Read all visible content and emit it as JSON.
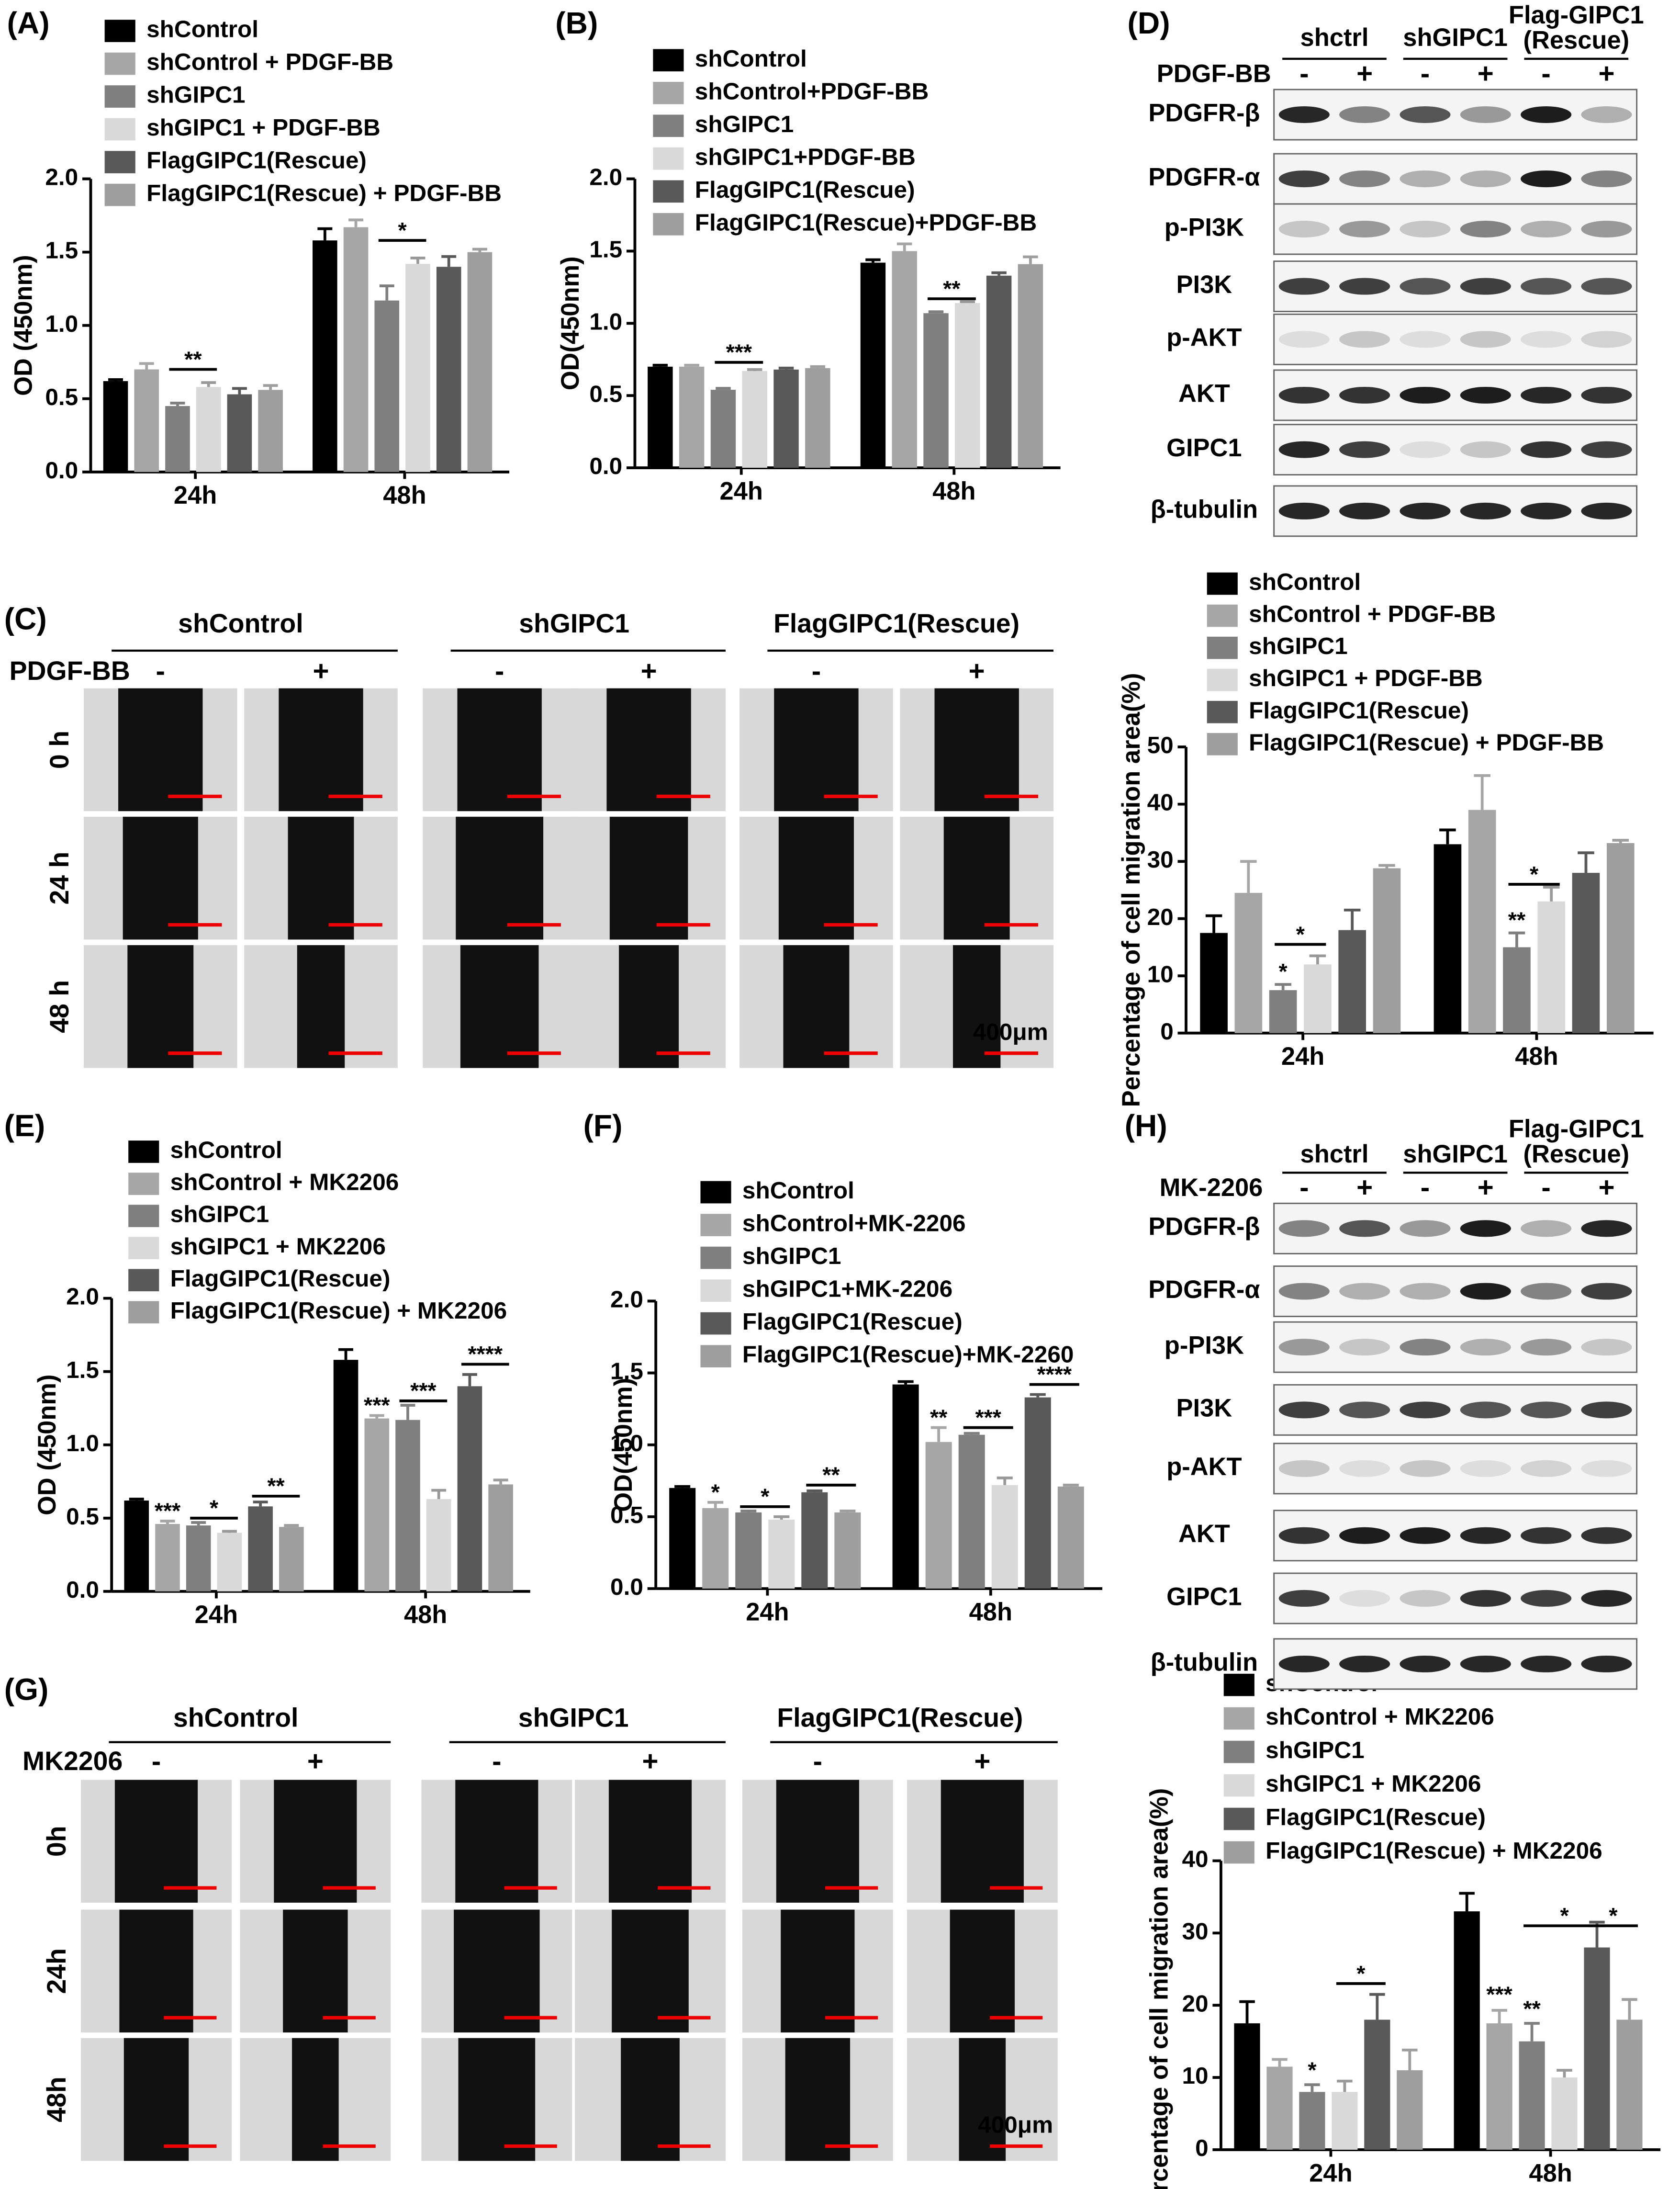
{
  "panel_labels": [
    "(A)",
    "(B)",
    "(C)",
    "(D)",
    "(E)",
    "(F)",
    "(G)",
    "(H)"
  ],
  "chart_data": [
    {
      "type": "bar",
      "ylabel": "OD (450nm)",
      "categories": [
        "24h",
        "48h"
      ],
      "ylim": [
        0,
        2
      ],
      "yticks": [
        {
          "value": 0,
          "label": "0.0"
        },
        0.5,
        {
          "value": 1,
          "label": "1.0"
        },
        1.5,
        {
          "value": 2,
          "label": "2.0"
        }
      ],
      "series": [
        {
          "name": "shControl",
          "color": "#000000",
          "values": [
            0.62,
            1.58
          ],
          "errors": [
            0.01,
            0.08
          ]
        },
        {
          "name": "shControl + PDGF-BB",
          "color": "#a6a6a6",
          "values": [
            0.7,
            1.67
          ],
          "errors": [
            0.04,
            0.05
          ]
        },
        {
          "name": "shGIPC1",
          "color": "#7f7f7f",
          "values": [
            0.45,
            1.17
          ],
          "errors": [
            0.02,
            0.1
          ]
        },
        {
          "name": "shGIPC1 + PDGF-BB",
          "color": "#d9d9d9",
          "values": [
            0.58,
            1.42
          ],
          "errors": [
            0.03,
            0.04
          ]
        },
        {
          "name": "FlagGIPC1(Rescue)",
          "color": "#595959",
          "values": [
            0.53,
            1.4
          ],
          "errors": [
            0.04,
            0.07
          ]
        },
        {
          "name": "FlagGIPC1(Rescue) + PDGF-BB",
          "color": "#9e9e9e",
          "values": [
            0.56,
            1.5
          ],
          "errors": [
            0.03,
            0.02
          ]
        }
      ],
      "annotations": [
        {
          "text": "**",
          "category": "24h",
          "series": [
            "shGIPC1",
            "shGIPC1 + PDGF-BB"
          ],
          "y": 0.7
        },
        {
          "text": "*",
          "category": "48h",
          "series": [
            "shGIPC1",
            "shGIPC1 + PDGF-BB"
          ],
          "y": 1.58
        }
      ]
    },
    {
      "type": "bar",
      "ylabel": "OD(450nm)",
      "categories": [
        "24h",
        "48h"
      ],
      "ylim": [
        0,
        2
      ],
      "yticks": [
        {
          "value": 0,
          "label": "0.0"
        },
        0.5,
        {
          "value": 1,
          "label": "1.0"
        },
        1.5,
        {
          "value": 2,
          "label": "2.0"
        }
      ],
      "series": [
        {
          "name": "shControl",
          "color": "#000000",
          "values": [
            0.7,
            1.42
          ],
          "errors": [
            0.01,
            0.02
          ]
        },
        {
          "name": "shControl+PDGF-BB",
          "color": "#a6a6a6",
          "values": [
            0.7,
            1.5
          ],
          "errors": [
            0.01,
            0.05
          ]
        },
        {
          "name": "shGIPC1",
          "color": "#7f7f7f",
          "values": [
            0.54,
            1.07
          ],
          "errors": [
            0.01,
            0.01
          ]
        },
        {
          "name": "shGIPC1+PDGF-BB",
          "color": "#d9d9d9",
          "values": [
            0.67,
            1.14
          ],
          "errors": [
            0.01,
            0.01
          ]
        },
        {
          "name": "FlagGIPC1(Rescue)",
          "color": "#595959",
          "values": [
            0.68,
            1.33
          ],
          "errors": [
            0.01,
            0.02
          ]
        },
        {
          "name": "FlagGIPC1(Rescue)+PDGF-BB",
          "color": "#9e9e9e",
          "values": [
            0.69,
            1.41
          ],
          "errors": [
            0.01,
            0.05
          ]
        }
      ],
      "annotations": [
        {
          "text": "***",
          "category": "24h",
          "series": [
            "shGIPC1",
            "shGIPC1+PDGF-BB"
          ],
          "y": 0.73
        },
        {
          "text": "**",
          "category": "48h",
          "series": [
            "shGIPC1",
            "shGIPC1+PDGF-BB"
          ],
          "y": 1.17
        }
      ]
    },
    {
      "type": "bar",
      "ylabel": "Percentage of cell migration area(%)",
      "categories": [
        "24h",
        "48h"
      ],
      "ylim": [
        0,
        50
      ],
      "yticks": [
        0,
        10,
        20,
        30,
        40,
        50
      ],
      "series": [
        {
          "name": "shControl",
          "color": "#000000",
          "values": [
            17.5,
            33
          ],
          "errors": [
            3,
            2.5
          ]
        },
        {
          "name": "shControl + PDGF-BB",
          "color": "#a6a6a6",
          "values": [
            24.5,
            39
          ],
          "errors": [
            5.5,
            6
          ]
        },
        {
          "name": "shGIPC1",
          "color": "#7f7f7f",
          "values": [
            7.5,
            15
          ],
          "errors": [
            1,
            2.5
          ]
        },
        {
          "name": "shGIPC1 + PDGF-BB",
          "color": "#d9d9d9",
          "values": [
            12,
            23
          ],
          "errors": [
            1.5,
            2.5
          ]
        },
        {
          "name": "FlagGIPC1(Rescue)",
          "color": "#595959",
          "values": [
            18,
            28
          ],
          "errors": [
            3.5,
            3.5
          ]
        },
        {
          "name": "FlagGIPC1(Rescue) + PDGF-BB",
          "color": "#9e9e9e",
          "values": [
            28.8,
            33.2
          ],
          "errors": [
            0.5,
            0.5
          ]
        }
      ],
      "annotations": [
        {
          "text": "*",
          "category": "24h",
          "series": [
            "shGIPC1"
          ],
          "y": 9.5
        },
        {
          "text": "*",
          "category": "24h",
          "series": [
            "shGIPC1",
            "shGIPC1 + PDGF-BB"
          ],
          "y": 15.5
        },
        {
          "text": "**",
          "category": "48h",
          "series": [
            "shGIPC1"
          ],
          "y": 18.5
        },
        {
          "text": "*",
          "category": "48h",
          "series": [
            "shGIPC1",
            "shGIPC1 + PDGF-BB"
          ],
          "y": 26
        }
      ]
    },
    {
      "type": "bar",
      "ylabel": "OD (450nm)",
      "categories": [
        "24h",
        "48h"
      ],
      "ylim": [
        0,
        2
      ],
      "yticks": [
        {
          "value": 0,
          "label": "0.0"
        },
        0.5,
        {
          "value": 1,
          "label": "1.0"
        },
        1.5,
        {
          "value": 2,
          "label": "2.0"
        }
      ],
      "series": [
        {
          "name": "shControl",
          "color": "#000000",
          "values": [
            0.62,
            1.58
          ],
          "errors": [
            0.01,
            0.07
          ]
        },
        {
          "name": "shControl + MK2206",
          "color": "#a6a6a6",
          "values": [
            0.46,
            1.18
          ],
          "errors": [
            0.02,
            0.02
          ]
        },
        {
          "name": "shGIPC1",
          "color": "#7f7f7f",
          "values": [
            0.45,
            1.17
          ],
          "errors": [
            0.02,
            0.1
          ]
        },
        {
          "name": "shGIPC1 + MK2206",
          "color": "#d9d9d9",
          "values": [
            0.4,
            0.63
          ],
          "errors": [
            0.01,
            0.06
          ]
        },
        {
          "name": "FlagGIPC1(Rescue)",
          "color": "#595959",
          "values": [
            0.58,
            1.4
          ],
          "errors": [
            0.03,
            0.08
          ]
        },
        {
          "name": "FlagGIPC1(Rescue) + MK2206",
          "color": "#9e9e9e",
          "values": [
            0.44,
            0.73
          ],
          "errors": [
            0.01,
            0.03
          ]
        }
      ],
      "annotations": [
        {
          "text": "***",
          "category": "24h",
          "series": [
            "shControl + MK2206"
          ],
          "y": 0.5
        },
        {
          "text": "*",
          "category": "24h",
          "series": [
            "shGIPC1",
            "shGIPC1 + MK2206"
          ],
          "y": 0.5
        },
        {
          "text": "**",
          "category": "24h",
          "series": [
            "FlagGIPC1(Rescue)",
            "FlagGIPC1(Rescue) + MK2206"
          ],
          "y": 0.65
        },
        {
          "text": "***",
          "category": "48h",
          "series": [
            "shControl + MK2206"
          ],
          "y": 1.22
        },
        {
          "text": "***",
          "category": "48h",
          "series": [
            "shGIPC1",
            "shGIPC1 + MK2206"
          ],
          "y": 1.3
        },
        {
          "text": "****",
          "category": "48h",
          "series": [
            "FlagGIPC1(Rescue)",
            "FlagGIPC1(Rescue) + MK2206"
          ],
          "y": 1.55
        }
      ]
    },
    {
      "type": "bar",
      "ylabel": "OD(450nm)",
      "categories": [
        "24h",
        "48h"
      ],
      "ylim": [
        0,
        2
      ],
      "yticks": [
        {
          "value": 0,
          "label": "0.0"
        },
        0.5,
        {
          "value": 1,
          "label": "1.0"
        },
        1.5,
        {
          "value": 2,
          "label": "2.0"
        }
      ],
      "series": [
        {
          "name": "shControl",
          "color": "#000000",
          "values": [
            0.7,
            1.42
          ],
          "errors": [
            0.01,
            0.02
          ]
        },
        {
          "name": "shControl+MK-2206",
          "color": "#a6a6a6",
          "values": [
            0.56,
            1.02
          ],
          "errors": [
            0.04,
            0.1
          ]
        },
        {
          "name": "shGIPC1",
          "color": "#7f7f7f",
          "values": [
            0.53,
            1.07
          ],
          "errors": [
            0.01,
            0.01
          ]
        },
        {
          "name": "shGIPC1+MK-2206",
          "color": "#d9d9d9",
          "values": [
            0.48,
            0.72
          ],
          "errors": [
            0.02,
            0.05
          ]
        },
        {
          "name": "FlagGIPC1(Rescue)",
          "color": "#595959",
          "values": [
            0.67,
            1.33
          ],
          "errors": [
            0.01,
            0.02
          ]
        },
        {
          "name": "FlagGIPC1(Rescue)+MK-2260",
          "color": "#9e9e9e",
          "values": [
            0.53,
            0.71
          ],
          "errors": [
            0.01,
            0.01
          ]
        }
      ],
      "annotations": [
        {
          "text": "*",
          "category": "24h",
          "series": [
            "shControl+MK-2206"
          ],
          "y": 0.62
        },
        {
          "text": "*",
          "category": "24h",
          "series": [
            "shGIPC1",
            "shGIPC1+MK-2206"
          ],
          "y": 0.57
        },
        {
          "text": "**",
          "category": "24h",
          "series": [
            "FlagGIPC1(Rescue)",
            "FlagGIPC1(Rescue)+MK-2260"
          ],
          "y": 0.72
        },
        {
          "text": "**",
          "category": "48h",
          "series": [
            "shControl+MK-2206"
          ],
          "y": 1.14
        },
        {
          "text": "***",
          "category": "48h",
          "series": [
            "shGIPC1",
            "shGIPC1+MK-2206"
          ],
          "y": 1.12
        },
        {
          "text": "****",
          "category": "48h",
          "series": [
            "FlagGIPC1(Rescue)",
            "FlagGIPC1(Rescue)+MK-2260"
          ],
          "y": 1.42
        }
      ]
    },
    {
      "type": "bar",
      "ylabel": "Percentage of cell migration area(%)",
      "categories": [
        "24h",
        "48h"
      ],
      "ylim": [
        0,
        40
      ],
      "yticks": [
        0,
        10,
        20,
        30,
        40
      ],
      "series": [
        {
          "name": "shControl",
          "color": "#000000",
          "values": [
            17.5,
            33
          ],
          "errors": [
            3,
            2.5
          ]
        },
        {
          "name": "shControl + MK2206",
          "color": "#a6a6a6",
          "values": [
            11.5,
            17.5
          ],
          "errors": [
            1,
            1.8
          ]
        },
        {
          "name": "shGIPC1",
          "color": "#7f7f7f",
          "values": [
            8,
            15
          ],
          "errors": [
            1,
            2.5
          ]
        },
        {
          "name": "shGIPC1 + MK2206",
          "color": "#d9d9d9",
          "values": [
            8,
            10
          ],
          "errors": [
            1.5,
            1
          ]
        },
        {
          "name": "FlagGIPC1(Rescue)",
          "color": "#595959",
          "values": [
            18,
            28
          ],
          "errors": [
            3.5,
            3.5
          ]
        },
        {
          "name": "FlagGIPC1(Rescue) + MK2206",
          "color": "#9e9e9e",
          "values": [
            11,
            18
          ],
          "errors": [
            2.8,
            2.8
          ]
        }
      ],
      "annotations": [
        {
          "text": "*",
          "category": "24h",
          "series": [
            "shGIPC1"
          ],
          "y": 10
        },
        {
          "text": "*",
          "category": "24h",
          "series": [
            "shGIPC1 + MK2206",
            "FlagGIPC1(Rescue)"
          ],
          "y": 23
        },
        {
          "text": "***",
          "category": "48h",
          "series": [
            "shControl + MK2206"
          ],
          "y": 20.5
        },
        {
          "text": "**",
          "category": "48h",
          "series": [
            "shGIPC1"
          ],
          "y": 18.5
        },
        {
          "text": "*",
          "category": "48h",
          "series": [
            "shGIPC1",
            "FlagGIPC1(Rescue)"
          ],
          "y": 31
        },
        {
          "text": "*",
          "category": "48h",
          "series": [
            "FlagGIPC1(Rescue)",
            "FlagGIPC1(Rescue) + MK2206"
          ],
          "y": 31
        }
      ]
    }
  ],
  "blots": [
    {
      "groups": [
        [
          "shctrl"
        ],
        [
          "shGIPC1"
        ],
        [
          "Flag-GIPC1",
          "(Rescue)"
        ]
      ],
      "treatment": "PDGF-BB",
      "signs": [
        "-",
        "+"
      ],
      "rows": [
        "PDGFR-β",
        "PDGFR-α",
        "p-PI3K",
        "PI3K",
        "p-AKT",
        "AKT",
        "GIPC1",
        "β-tubulin"
      ]
    },
    {
      "groups": [
        [
          "shctrl"
        ],
        [
          "shGIPC1"
        ],
        [
          "Flag-GIPC1",
          "(Rescue)"
        ]
      ],
      "treatment": "MK-2206",
      "signs": [
        "-",
        "+"
      ],
      "rows": [
        "PDGFR-β",
        "PDGFR-α",
        "p-PI3K",
        "PI3K",
        "p-AKT",
        "AKT",
        "GIPC1",
        "β-tubulin"
      ]
    }
  ],
  "wound_assays": [
    {
      "groups": [
        "shControl",
        "shGIPC1",
        "FlagGIPC1(Rescue)"
      ],
      "treatment": "PDGF-BB",
      "signs": [
        "-",
        "+"
      ],
      "times": [
        "0 h",
        "24 h",
        "48 h"
      ],
      "scale_bar": "400μm"
    },
    {
      "groups": [
        "shControl",
        "shGIPC1",
        "FlagGIPC1(Rescue)"
      ],
      "treatment": "MK2206",
      "signs": [
        "-",
        "+"
      ],
      "times": [
        "0h",
        "24h",
        "48h"
      ],
      "scale_bar": "400μm"
    }
  ]
}
